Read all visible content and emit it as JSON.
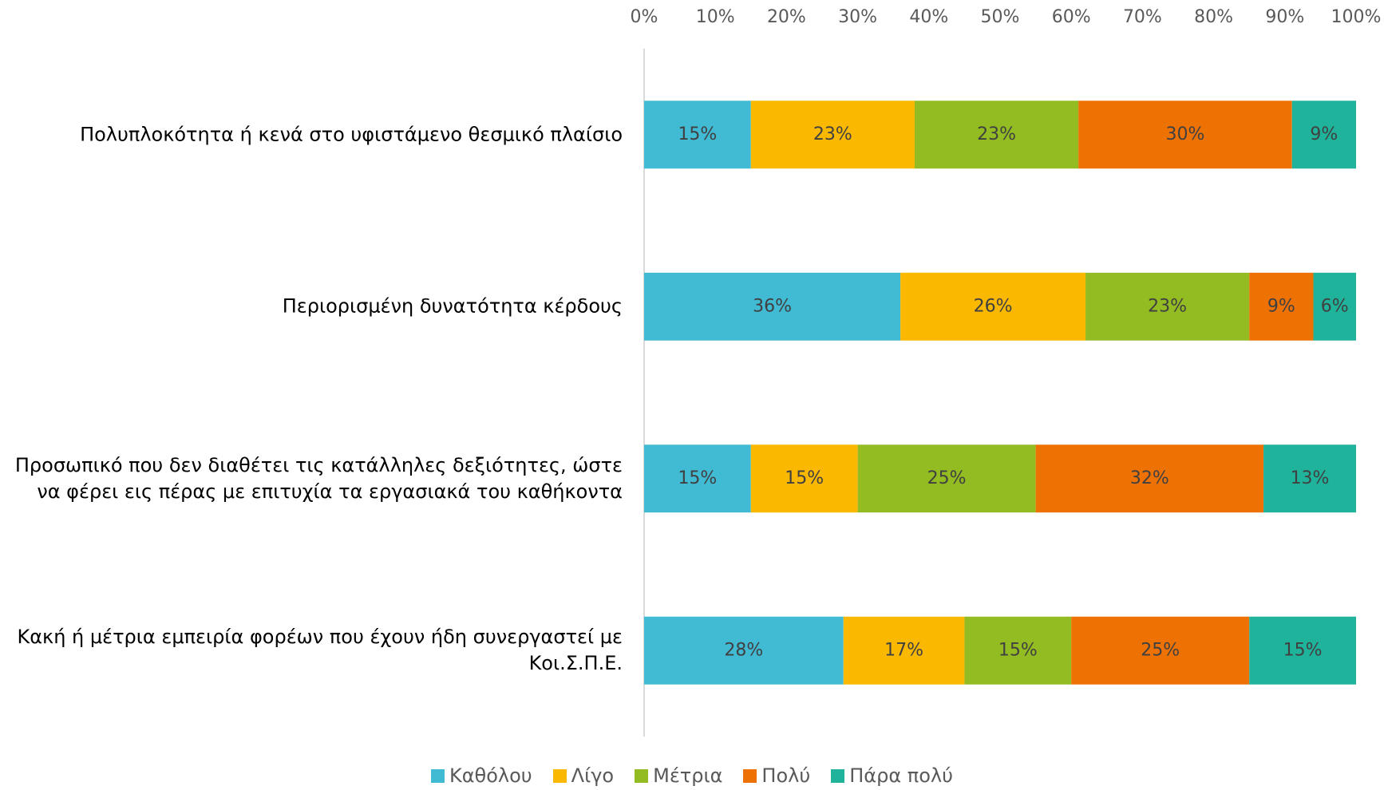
{
  "chart_data": {
    "type": "bar",
    "orientation": "horizontal",
    "stacked": true,
    "categories": [
      "Πολυπλοκότητα ή κενά στο υφιστάμενο θεσμικό πλαίσιο",
      "Περιορισμένη δυνατότητα κέρδους",
      "Προσωπικό που δεν διαθέτει τις κατάλληλες δεξιότητες, ώστε να φέρει εις πέρας με επιτυχία τα εργασιακά του καθήκοντα",
      "Κακή ή μέτρια εμπειρία φορέων που έχουν ήδη συνεργαστεί με Κοι.Σ.Π.Ε."
    ],
    "series": [
      {
        "name": "Καθόλου",
        "color": "#41bad4",
        "values": [
          15,
          36,
          15,
          28
        ],
        "value_labels": [
          "15%",
          "36%",
          "15%",
          "28%"
        ]
      },
      {
        "name": "Λίγο",
        "color": "#fbb800",
        "values": [
          23,
          26,
          15,
          17
        ],
        "value_labels": [
          "23%",
          "26%",
          "15%",
          "17%"
        ]
      },
      {
        "name": "Μέτρια",
        "color": "#93bc22",
        "values": [
          23,
          23,
          25,
          15
        ],
        "value_labels": [
          "23%",
          "23%",
          "25%",
          "15%"
        ]
      },
      {
        "name": "Πολύ",
        "color": "#ee7203",
        "values": [
          30,
          9,
          32,
          25
        ],
        "value_labels": [
          "30%",
          "9%",
          "32%",
          "25%"
        ]
      },
      {
        "name": "Πάρα πολύ",
        "color": "#1fb39b",
        "values": [
          9,
          6,
          13,
          15
        ],
        "value_labels": [
          "9%",
          "6%",
          "13%",
          "15%"
        ]
      }
    ],
    "xlim": [
      0,
      100
    ],
    "xticks": [
      {
        "value": 0,
        "label": "0%"
      },
      {
        "value": 10,
        "label": "10%"
      },
      {
        "value": 20,
        "label": "20%"
      },
      {
        "value": 30,
        "label": "30%"
      },
      {
        "value": 40,
        "label": "40%"
      },
      {
        "value": 50,
        "label": "50%"
      },
      {
        "value": 60,
        "label": "60%"
      },
      {
        "value": 70,
        "label": "70%"
      },
      {
        "value": 80,
        "label": "80%"
      },
      {
        "value": 90,
        "label": "90%"
      },
      {
        "value": 100,
        "label": "100%"
      }
    ],
    "legend": "bottom"
  }
}
